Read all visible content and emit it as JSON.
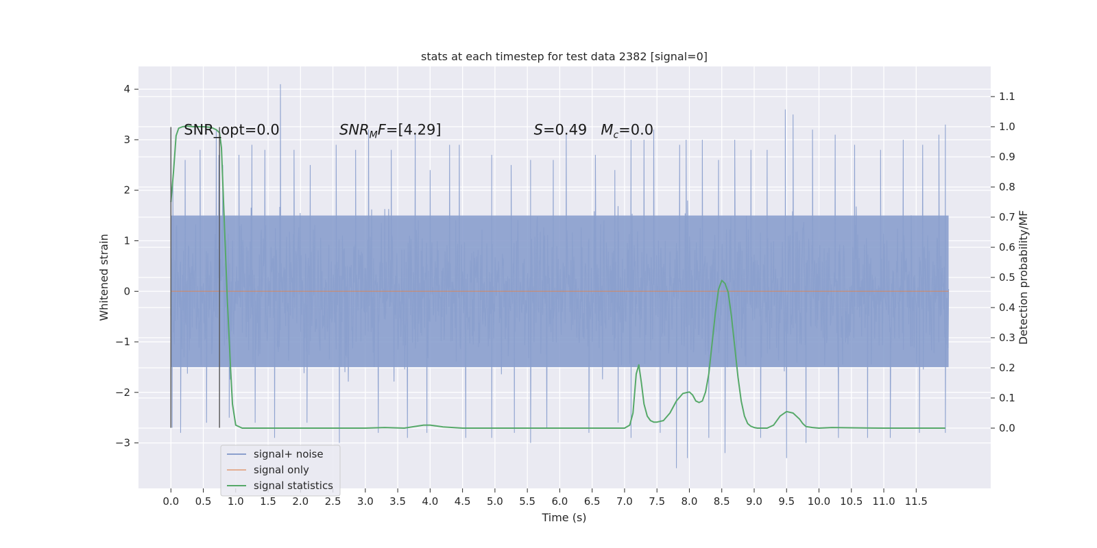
{
  "chart_data": {
    "type": "line",
    "title": "stats at each timestep for test data 2382 [signal=0]",
    "xlabel": "Time (s)",
    "ylabel_left": "Whitened strain",
    "ylabel_right": "Detection probability/MF",
    "xlim": [
      -0.5,
      12.65
    ],
    "ylim_left": [
      -3.9,
      4.45
    ],
    "ylim_right": [
      -0.2,
      1.2
    ],
    "x_ticks": [
      0.0,
      0.5,
      1.0,
      1.5,
      2.0,
      2.5,
      3.0,
      3.5,
      4.0,
      4.5,
      5.0,
      5.5,
      6.0,
      6.5,
      7.0,
      7.5,
      8.0,
      8.5,
      9.0,
      9.5,
      10.0,
      10.5,
      11.0,
      11.5
    ],
    "x_tick_labels": [
      "0.0",
      "0.5",
      "1.0",
      "1.5",
      "2.0",
      "2.5",
      "3.0",
      "3.5",
      "4.0",
      "4.5",
      "5.0",
      "5.5",
      "6.0",
      "6.5",
      "7.0",
      "7.5",
      "8.0",
      "8.5",
      "9.0",
      "9.5",
      "10.0",
      "10.5",
      "11.0",
      "11.5"
    ],
    "y_left_ticks": [
      -3,
      -2,
      -1,
      0,
      1,
      2,
      3,
      4
    ],
    "y_left_tick_labels": [
      "−3",
      "−2",
      "−1",
      "0",
      "1",
      "2",
      "3",
      "4"
    ],
    "y_right_ticks": [
      0.0,
      0.1,
      0.2,
      0.3,
      0.4,
      0.5,
      0.6,
      0.7,
      0.8,
      0.9,
      1.0,
      1.1
    ],
    "y_right_tick_labels": [
      "0.0",
      "0.1",
      "0.2",
      "0.3",
      "0.4",
      "0.5",
      "0.6",
      "0.7",
      "0.8",
      "0.9",
      "1.0",
      "1.1"
    ],
    "grid": true,
    "legend_position": "bottom-left",
    "noise": {
      "name": "signal+ noise",
      "color": "#8a9fcd",
      "t_range": [
        0.0,
        12.0
      ],
      "band": [
        -1.5,
        1.5
      ],
      "envelope": [
        -3.55,
        4.1
      ],
      "spike_times": [
        0.03,
        0.22,
        0.45,
        0.7,
        0.74,
        0.8,
        1.05,
        1.25,
        1.45,
        1.69,
        1.9,
        2.15,
        2.55,
        2.85,
        3.05,
        3.4,
        3.77,
        4.0,
        4.3,
        4.45,
        4.95,
        5.25,
        5.55,
        5.9,
        6.1,
        6.55,
        6.85,
        7.1,
        7.3,
        7.45,
        7.85,
        7.95,
        8.2,
        8.45,
        8.7,
        8.95,
        9.2,
        9.48,
        9.6,
        9.9,
        10.25,
        10.55,
        10.95,
        11.3,
        11.6,
        11.85,
        11.95
      ],
      "spike_values": [
        2.3,
        2.6,
        2.8,
        3.2,
        2.7,
        2.5,
        2.7,
        2.9,
        2.8,
        4.1,
        2.8,
        2.5,
        2.9,
        2.8,
        3.2,
        2.8,
        3.1,
        2.4,
        2.9,
        2.9,
        2.7,
        2.5,
        2.6,
        2.6,
        3.1,
        2.7,
        2.4,
        3.0,
        3.0,
        3.2,
        2.9,
        3.0,
        3.0,
        2.6,
        3.0,
        2.8,
        2.8,
        3.6,
        3.5,
        3.2,
        3.1,
        2.9,
        2.8,
        3.0,
        2.9,
        3.1,
        3.3
      ],
      "neg_spike_times": [
        0.02,
        0.15,
        0.55,
        0.9,
        1.3,
        1.6,
        2.1,
        2.6,
        3.2,
        3.65,
        3.95,
        4.55,
        4.95,
        5.3,
        5.55,
        5.8,
        6.45,
        6.9,
        7.1,
        7.55,
        7.8,
        7.97,
        8.3,
        8.55,
        9.1,
        9.5,
        9.8,
        10.3,
        10.75,
        11.1,
        11.55,
        11.95
      ],
      "neg_spike_values": [
        -2.7,
        -2.8,
        -2.6,
        -2.5,
        -2.6,
        -2.9,
        -2.6,
        -3.0,
        -2.8,
        -2.9,
        -2.8,
        -2.9,
        -2.9,
        -2.8,
        -3.0,
        -2.7,
        -2.8,
        -2.6,
        -2.9,
        -2.8,
        -3.5,
        -3.3,
        -2.9,
        -3.2,
        -2.9,
        -3.3,
        -3.0,
        -2.9,
        -2.9,
        -2.9,
        -2.8,
        -2.8
      ]
    },
    "signal_only": {
      "name": "signal only",
      "color": "#dd8452",
      "t_range": [
        0.0,
        12.0
      ],
      "value": 0.0
    },
    "statistics": {
      "name": "signal statistics",
      "color": "#55a868",
      "x": [
        0.0,
        0.04,
        0.08,
        0.12,
        0.18,
        0.25,
        0.35,
        0.5,
        0.62,
        0.7,
        0.75,
        0.78,
        0.8,
        0.83,
        0.87,
        0.92,
        0.95,
        1.0,
        1.1,
        1.5,
        2.0,
        2.5,
        3.0,
        3.3,
        3.6,
        3.9,
        4.0,
        4.2,
        4.5,
        5.0,
        5.5,
        6.0,
        6.5,
        7.0,
        7.08,
        7.13,
        7.18,
        7.22,
        7.26,
        7.3,
        7.35,
        7.4,
        7.45,
        7.5,
        7.6,
        7.7,
        7.8,
        7.9,
        8.0,
        8.05,
        8.1,
        8.15,
        8.2,
        8.25,
        8.3,
        8.35,
        8.4,
        8.45,
        8.5,
        8.55,
        8.6,
        8.65,
        8.7,
        8.75,
        8.8,
        8.85,
        8.9,
        8.95,
        9.0,
        9.05,
        9.1,
        9.2,
        9.3,
        9.4,
        9.5,
        9.6,
        9.7,
        9.75,
        9.8,
        9.9,
        10.0,
        10.2,
        10.5,
        11.0,
        11.5,
        11.95
      ],
      "y": [
        0.75,
        0.85,
        0.97,
        0.995,
        1.0,
        1.002,
        1.0,
        1.0,
        0.998,
        0.99,
        0.98,
        0.93,
        0.82,
        0.65,
        0.43,
        0.2,
        0.08,
        0.01,
        0.0,
        0.0,
        0.0,
        0.0,
        0.0,
        0.002,
        0.0,
        0.01,
        0.01,
        0.004,
        0.0,
        0.0,
        0.0,
        0.0,
        0.0,
        0.0,
        0.01,
        0.05,
        0.18,
        0.21,
        0.15,
        0.08,
        0.04,
        0.025,
        0.02,
        0.02,
        0.025,
        0.05,
        0.09,
        0.115,
        0.12,
        0.11,
        0.09,
        0.085,
        0.09,
        0.12,
        0.18,
        0.28,
        0.38,
        0.46,
        0.49,
        0.48,
        0.45,
        0.37,
        0.27,
        0.17,
        0.09,
        0.04,
        0.015,
        0.006,
        0.002,
        0.0,
        0.0,
        0.0,
        0.01,
        0.04,
        0.055,
        0.05,
        0.03,
        0.015,
        0.005,
        0.002,
        0.0,
        0.002,
        0.001,
        0.0,
        0.0,
        0.0
      ]
    },
    "vlines": [
      0.0,
      0.75
    ],
    "vline_color": "#555555",
    "vline_range": [
      -2.7,
      3.25
    ],
    "annotations": [
      {
        "key": "snr_opt",
        "text": "SNR_opt=0.0",
        "x": 0.2,
        "y": 3.1
      },
      {
        "key": "snr_mf",
        "text": "SNR_MF=[4.29]",
        "x": 2.6,
        "y": 3.1
      },
      {
        "key": "s_mc",
        "text": "S=0.49   M_c=0.0",
        "x": 5.6,
        "y": 3.1
      }
    ],
    "legend": [
      "signal+ noise",
      "signal only",
      "signal statistics"
    ]
  }
}
